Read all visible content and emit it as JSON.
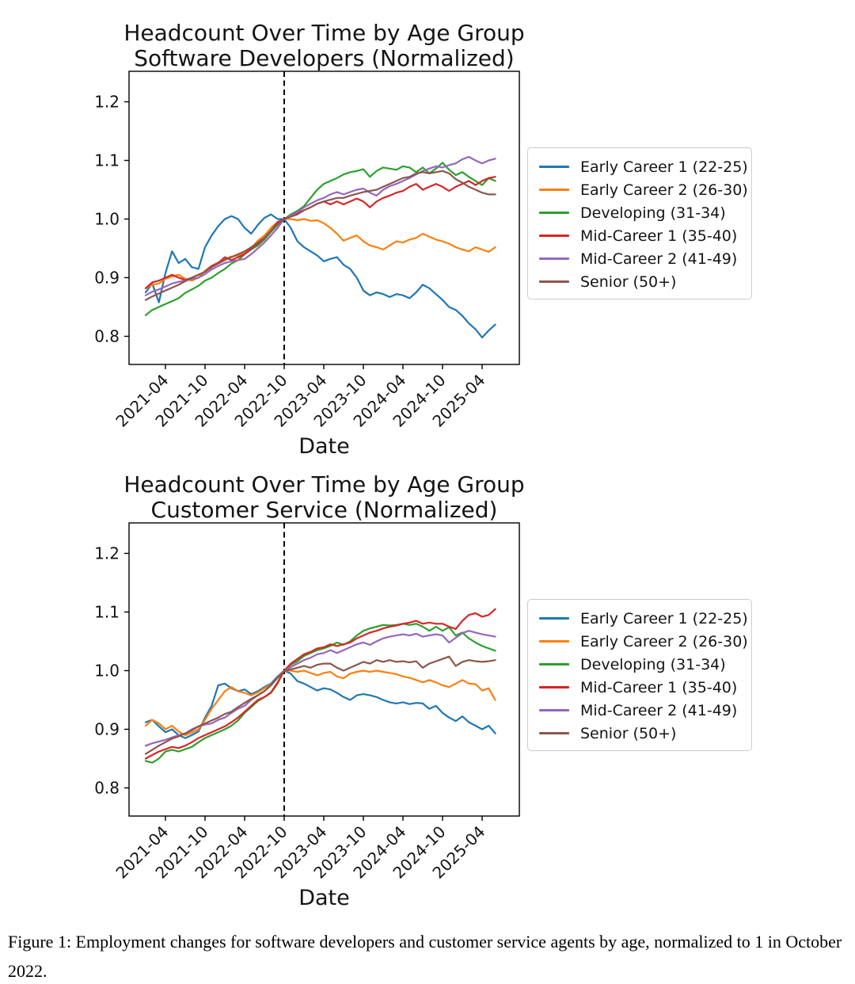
{
  "figure_caption": "Figure 1: Employment changes for software developers and customer service agents by age, normalized to 1 in October 2022.",
  "months": [
    "2021-01",
    "2021-02",
    "2021-03",
    "2021-04",
    "2021-05",
    "2021-06",
    "2021-07",
    "2021-08",
    "2021-09",
    "2021-10",
    "2021-11",
    "2021-12",
    "2022-01",
    "2022-02",
    "2022-03",
    "2022-04",
    "2022-05",
    "2022-06",
    "2022-07",
    "2022-08",
    "2022-09",
    "2022-10",
    "2022-11",
    "2022-12",
    "2023-01",
    "2023-02",
    "2023-03",
    "2023-04",
    "2023-05",
    "2023-06",
    "2023-07",
    "2023-08",
    "2023-09",
    "2023-10",
    "2023-11",
    "2023-12",
    "2024-01",
    "2024-02",
    "2024-03",
    "2024-04",
    "2024-05",
    "2024-06",
    "2024-07",
    "2024-08",
    "2024-09",
    "2024-10",
    "2024-11",
    "2024-12",
    "2025-01",
    "2025-02",
    "2025-03",
    "2025-04",
    "2025-05",
    "2025-06"
  ],
  "chart_data": [
    {
      "type": "line",
      "title": "Headcount Over Time by Age Group",
      "subtitle": "Software Developers (Normalized)",
      "xlabel": "Date",
      "ylabel": "",
      "grid": false,
      "legend_position": "right",
      "ylim": [
        0.752,
        1.252
      ],
      "yticks": [
        0.8,
        0.9,
        1.0,
        1.1,
        1.2
      ],
      "xtick_labels": [
        "2021-04",
        "2021-10",
        "2022-04",
        "2022-10",
        "2023-04",
        "2023-10",
        "2024-04",
        "2024-10",
        "2025-04"
      ],
      "xtick_month_index": [
        3,
        9,
        15,
        21,
        27,
        33,
        39,
        45,
        51
      ],
      "vline": {
        "month": "2022-10",
        "month_index": 21,
        "style": "dashed",
        "color": "#000000"
      },
      "series": [
        {
          "name": "Early Career 1 (22-25)",
          "color": "#1f77b4",
          "values": [
            0.875,
            0.89,
            0.858,
            0.908,
            0.945,
            0.925,
            0.932,
            0.918,
            0.915,
            0.952,
            0.972,
            0.988,
            1.0,
            1.005,
            1.0,
            0.985,
            0.975,
            0.99,
            1.002,
            1.008,
            1.0,
            1.0,
            0.985,
            0.962,
            0.952,
            0.945,
            0.938,
            0.928,
            0.932,
            0.935,
            0.922,
            0.915,
            0.9,
            0.878,
            0.87,
            0.875,
            0.872,
            0.867,
            0.872,
            0.87,
            0.865,
            0.875,
            0.888,
            0.882,
            0.872,
            0.862,
            0.85,
            0.845,
            0.835,
            0.822,
            0.812,
            0.798,
            0.81,
            0.82
          ]
        },
        {
          "name": "Early Career 2 (26-30)",
          "color": "#ff7f0e",
          "values": [
            0.882,
            0.888,
            0.89,
            0.898,
            0.902,
            0.905,
            0.898,
            0.895,
            0.9,
            0.912,
            0.92,
            0.926,
            0.932,
            0.936,
            0.938,
            0.942,
            0.95,
            0.963,
            0.972,
            0.985,
            0.995,
            1.0,
            1.0,
            0.998,
            1.0,
            0.997,
            0.998,
            0.993,
            0.985,
            0.975,
            0.963,
            0.968,
            0.972,
            0.962,
            0.955,
            0.952,
            0.948,
            0.955,
            0.962,
            0.96,
            0.965,
            0.968,
            0.975,
            0.97,
            0.965,
            0.962,
            0.958,
            0.952,
            0.948,
            0.945,
            0.952,
            0.948,
            0.944,
            0.952
          ]
        },
        {
          "name": "Developing (31-34)",
          "color": "#2ca02c",
          "values": [
            0.836,
            0.845,
            0.85,
            0.855,
            0.86,
            0.865,
            0.874,
            0.88,
            0.886,
            0.895,
            0.9,
            0.908,
            0.915,
            0.924,
            0.93,
            0.94,
            0.948,
            0.955,
            0.965,
            0.978,
            0.99,
            1.0,
            1.008,
            1.014,
            1.022,
            1.036,
            1.05,
            1.06,
            1.065,
            1.07,
            1.076,
            1.08,
            1.082,
            1.085,
            1.072,
            1.082,
            1.088,
            1.086,
            1.084,
            1.09,
            1.088,
            1.08,
            1.088,
            1.078,
            1.086,
            1.096,
            1.084,
            1.075,
            1.08,
            1.072,
            1.065,
            1.058,
            1.07,
            1.065
          ]
        },
        {
          "name": "Mid-Career 1 (35-40)",
          "color": "#d62728",
          "values": [
            0.882,
            0.892,
            0.895,
            0.9,
            0.905,
            0.9,
            0.896,
            0.9,
            0.905,
            0.91,
            0.92,
            0.925,
            0.935,
            0.93,
            0.935,
            0.94,
            0.95,
            0.958,
            0.968,
            0.98,
            0.995,
            1.0,
            1.005,
            1.01,
            1.015,
            1.02,
            1.026,
            1.03,
            1.025,
            1.03,
            1.025,
            1.03,
            1.035,
            1.03,
            1.02,
            1.03,
            1.036,
            1.04,
            1.045,
            1.048,
            1.055,
            1.06,
            1.05,
            1.055,
            1.06,
            1.055,
            1.048,
            1.055,
            1.06,
            1.065,
            1.058,
            1.065,
            1.07,
            1.072
          ]
        },
        {
          "name": "Mid-Career 2 (41-49)",
          "color": "#9467bd",
          "values": [
            0.87,
            0.876,
            0.88,
            0.885,
            0.89,
            0.893,
            0.895,
            0.898,
            0.9,
            0.906,
            0.914,
            0.92,
            0.925,
            0.928,
            0.93,
            0.932,
            0.94,
            0.95,
            0.96,
            0.972,
            0.985,
            1.0,
            1.006,
            1.012,
            1.02,
            1.026,
            1.032,
            1.036,
            1.042,
            1.046,
            1.042,
            1.046,
            1.05,
            1.052,
            1.045,
            1.04,
            1.05,
            1.056,
            1.06,
            1.065,
            1.07,
            1.076,
            1.082,
            1.086,
            1.09,
            1.088,
            1.092,
            1.095,
            1.102,
            1.106,
            1.1,
            1.095,
            1.1,
            1.103
          ]
        },
        {
          "name": "Senior (50+)",
          "color": "#8c564b",
          "values": [
            0.862,
            0.868,
            0.873,
            0.878,
            0.883,
            0.888,
            0.894,
            0.9,
            0.905,
            0.91,
            0.918,
            0.924,
            0.93,
            0.935,
            0.94,
            0.945,
            0.952,
            0.96,
            0.968,
            0.98,
            0.992,
            1.0,
            1.004,
            1.008,
            1.015,
            1.02,
            1.026,
            1.03,
            1.033,
            1.036,
            1.036,
            1.04,
            1.043,
            1.046,
            1.048,
            1.05,
            1.055,
            1.06,
            1.065,
            1.07,
            1.072,
            1.078,
            1.08,
            1.078,
            1.08,
            1.082,
            1.078,
            1.068,
            1.062,
            1.055,
            1.05,
            1.045,
            1.042,
            1.042
          ]
        }
      ]
    },
    {
      "type": "line",
      "title": "Headcount Over Time by Age Group",
      "subtitle": "Customer Service (Normalized)",
      "xlabel": "Date",
      "ylabel": "",
      "grid": false,
      "legend_position": "right",
      "ylim": [
        0.752,
        1.252
      ],
      "yticks": [
        0.8,
        0.9,
        1.0,
        1.1,
        1.2
      ],
      "xtick_labels": [
        "2021-04",
        "2021-10",
        "2022-04",
        "2022-10",
        "2023-04",
        "2023-10",
        "2024-04",
        "2024-10",
        "2025-04"
      ],
      "xtick_month_index": [
        3,
        9,
        15,
        21,
        27,
        33,
        39,
        45,
        51
      ],
      "vline": {
        "month": "2022-10",
        "month_index": 21,
        "style": "dashed",
        "color": "#000000"
      },
      "series": [
        {
          "name": "Early Career 1 (22-25)",
          "color": "#1f77b4",
          "values": [
            0.912,
            0.916,
            0.905,
            0.895,
            0.9,
            0.89,
            0.885,
            0.89,
            0.896,
            0.92,
            0.94,
            0.975,
            0.978,
            0.97,
            0.965,
            0.968,
            0.96,
            0.965,
            0.972,
            0.978,
            0.99,
            1.0,
            0.995,
            0.982,
            0.978,
            0.972,
            0.966,
            0.97,
            0.968,
            0.962,
            0.955,
            0.95,
            0.958,
            0.96,
            0.958,
            0.955,
            0.95,
            0.946,
            0.944,
            0.946,
            0.943,
            0.945,
            0.944,
            0.935,
            0.94,
            0.928,
            0.92,
            0.914,
            0.922,
            0.912,
            0.906,
            0.9,
            0.906,
            0.893
          ]
        },
        {
          "name": "Early Career 2 (26-30)",
          "color": "#ff7f0e",
          "values": [
            0.906,
            0.916,
            0.91,
            0.9,
            0.906,
            0.896,
            0.89,
            0.894,
            0.9,
            0.916,
            0.935,
            0.95,
            0.965,
            0.972,
            0.965,
            0.962,
            0.958,
            0.963,
            0.97,
            0.976,
            0.988,
            1.0,
            1.0,
            0.998,
            1.0,
            0.996,
            0.992,
            0.996,
            0.998,
            0.99,
            0.987,
            0.995,
            0.998,
            1.0,
            0.998,
            1.0,
            0.998,
            0.996,
            0.994,
            0.99,
            0.988,
            0.984,
            0.98,
            0.984,
            0.98,
            0.975,
            0.972,
            0.978,
            0.984,
            0.978,
            0.977,
            0.966,
            0.97,
            0.95
          ]
        },
        {
          "name": "Developing (31-34)",
          "color": "#2ca02c",
          "values": [
            0.846,
            0.843,
            0.85,
            0.862,
            0.865,
            0.862,
            0.866,
            0.87,
            0.878,
            0.885,
            0.89,
            0.895,
            0.9,
            0.906,
            0.915,
            0.928,
            0.938,
            0.948,
            0.955,
            0.962,
            0.978,
            1.0,
            1.01,
            1.016,
            1.025,
            1.03,
            1.035,
            1.038,
            1.042,
            1.048,
            1.044,
            1.05,
            1.06,
            1.068,
            1.072,
            1.075,
            1.078,
            1.077,
            1.078,
            1.08,
            1.078,
            1.08,
            1.075,
            1.068,
            1.075,
            1.068,
            1.074,
            1.06,
            1.065,
            1.055,
            1.048,
            1.042,
            1.038,
            1.034
          ]
        },
        {
          "name": "Mid-Career 1 (35-40)",
          "color": "#d62728",
          "values": [
            0.85,
            0.856,
            0.862,
            0.866,
            0.87,
            0.868,
            0.872,
            0.878,
            0.885,
            0.89,
            0.895,
            0.9,
            0.905,
            0.912,
            0.92,
            0.93,
            0.94,
            0.95,
            0.955,
            0.963,
            0.98,
            1.0,
            1.012,
            1.02,
            1.028,
            1.032,
            1.038,
            1.04,
            1.045,
            1.042,
            1.045,
            1.048,
            1.055,
            1.06,
            1.065,
            1.068,
            1.072,
            1.075,
            1.077,
            1.08,
            1.082,
            1.085,
            1.08,
            1.082,
            1.08,
            1.08,
            1.075,
            1.071,
            1.085,
            1.095,
            1.098,
            1.092,
            1.095,
            1.105
          ]
        },
        {
          "name": "Mid-Career 2 (41-49)",
          "color": "#9467bd",
          "values": [
            0.872,
            0.876,
            0.879,
            0.882,
            0.886,
            0.89,
            0.893,
            0.9,
            0.905,
            0.908,
            0.91,
            0.916,
            0.92,
            0.928,
            0.935,
            0.94,
            0.95,
            0.958,
            0.965,
            0.975,
            0.988,
            1.0,
            1.006,
            1.012,
            1.018,
            1.022,
            1.028,
            1.03,
            1.035,
            1.03,
            1.035,
            1.04,
            1.045,
            1.048,
            1.044,
            1.05,
            1.055,
            1.058,
            1.06,
            1.062,
            1.06,
            1.063,
            1.058,
            1.06,
            1.062,
            1.06,
            1.048,
            1.056,
            1.064,
            1.068,
            1.065,
            1.062,
            1.06,
            1.058
          ]
        },
        {
          "name": "Senior (50+)",
          "color": "#8c564b",
          "values": [
            0.858,
            0.865,
            0.872,
            0.878,
            0.884,
            0.888,
            0.893,
            0.898,
            0.905,
            0.91,
            0.915,
            0.92,
            0.926,
            0.93,
            0.938,
            0.945,
            0.952,
            0.958,
            0.965,
            0.975,
            0.988,
            1.0,
            1.002,
            1.005,
            1.008,
            1.005,
            1.01,
            1.012,
            1.012,
            1.005,
            1.0,
            1.005,
            1.01,
            1.015,
            1.012,
            1.018,
            1.015,
            1.018,
            1.015,
            1.016,
            1.014,
            1.016,
            1.005,
            1.012,
            1.016,
            1.02,
            1.024,
            1.008,
            1.015,
            1.018,
            1.016,
            1.015,
            1.016,
            1.018
          ]
        }
      ]
    }
  ]
}
